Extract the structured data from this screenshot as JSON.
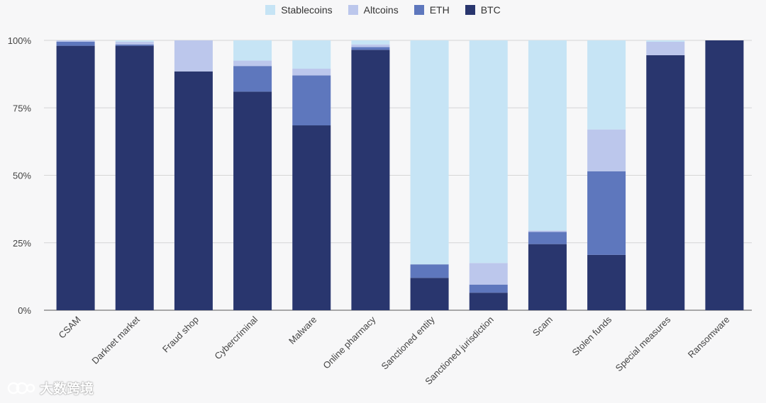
{
  "chart_data": {
    "type": "bar",
    "stacked": true,
    "categories": [
      "CSAM",
      "Darknet market",
      "Fraud shop",
      "Cybercriminal",
      "Malware",
      "Online pharmacy",
      "Sanctioned entity",
      "Sanctioned jurisdiction",
      "Scam",
      "Stolen funds",
      "Special measures",
      "Ransomware"
    ],
    "series": [
      {
        "name": "BTC",
        "color": "#29366e",
        "values": [
          98,
          98,
          88.5,
          81,
          68.5,
          96.5,
          12,
          6.5,
          24.5,
          20.5,
          94.5,
          100
        ]
      },
      {
        "name": "ETH",
        "color": "#5e77bd",
        "values": [
          1.5,
          0.5,
          0,
          9.5,
          18.5,
          1,
          5,
          3,
          4.5,
          31,
          0,
          0
        ]
      },
      {
        "name": "Altcoins",
        "color": "#bcc7ec",
        "values": [
          0.5,
          1,
          11.5,
          2,
          2.5,
          1,
          0,
          8,
          0.5,
          15.5,
          5,
          0
        ]
      },
      {
        "name": "Stablecoins",
        "color": "#c6e4f5",
        "values": [
          0,
          0.5,
          0,
          7.5,
          10.5,
          1.5,
          83,
          82.5,
          70.5,
          33,
          0.5,
          0
        ]
      }
    ],
    "legend_order": [
      "Stablecoins",
      "Altcoins",
      "ETH",
      "BTC"
    ],
    "legend_position": "top-center",
    "ylim": [
      0,
      100
    ],
    "yticks": [
      "0%",
      "25%",
      "50%",
      "75%",
      "100%"
    ],
    "ytick_values": [
      0,
      25,
      50,
      75,
      100
    ],
    "grid": true,
    "title": "",
    "xlabel": "",
    "ylabel": ""
  },
  "watermark": {
    "text": "大数跨境",
    "icon": "watermark-logo-icon"
  }
}
